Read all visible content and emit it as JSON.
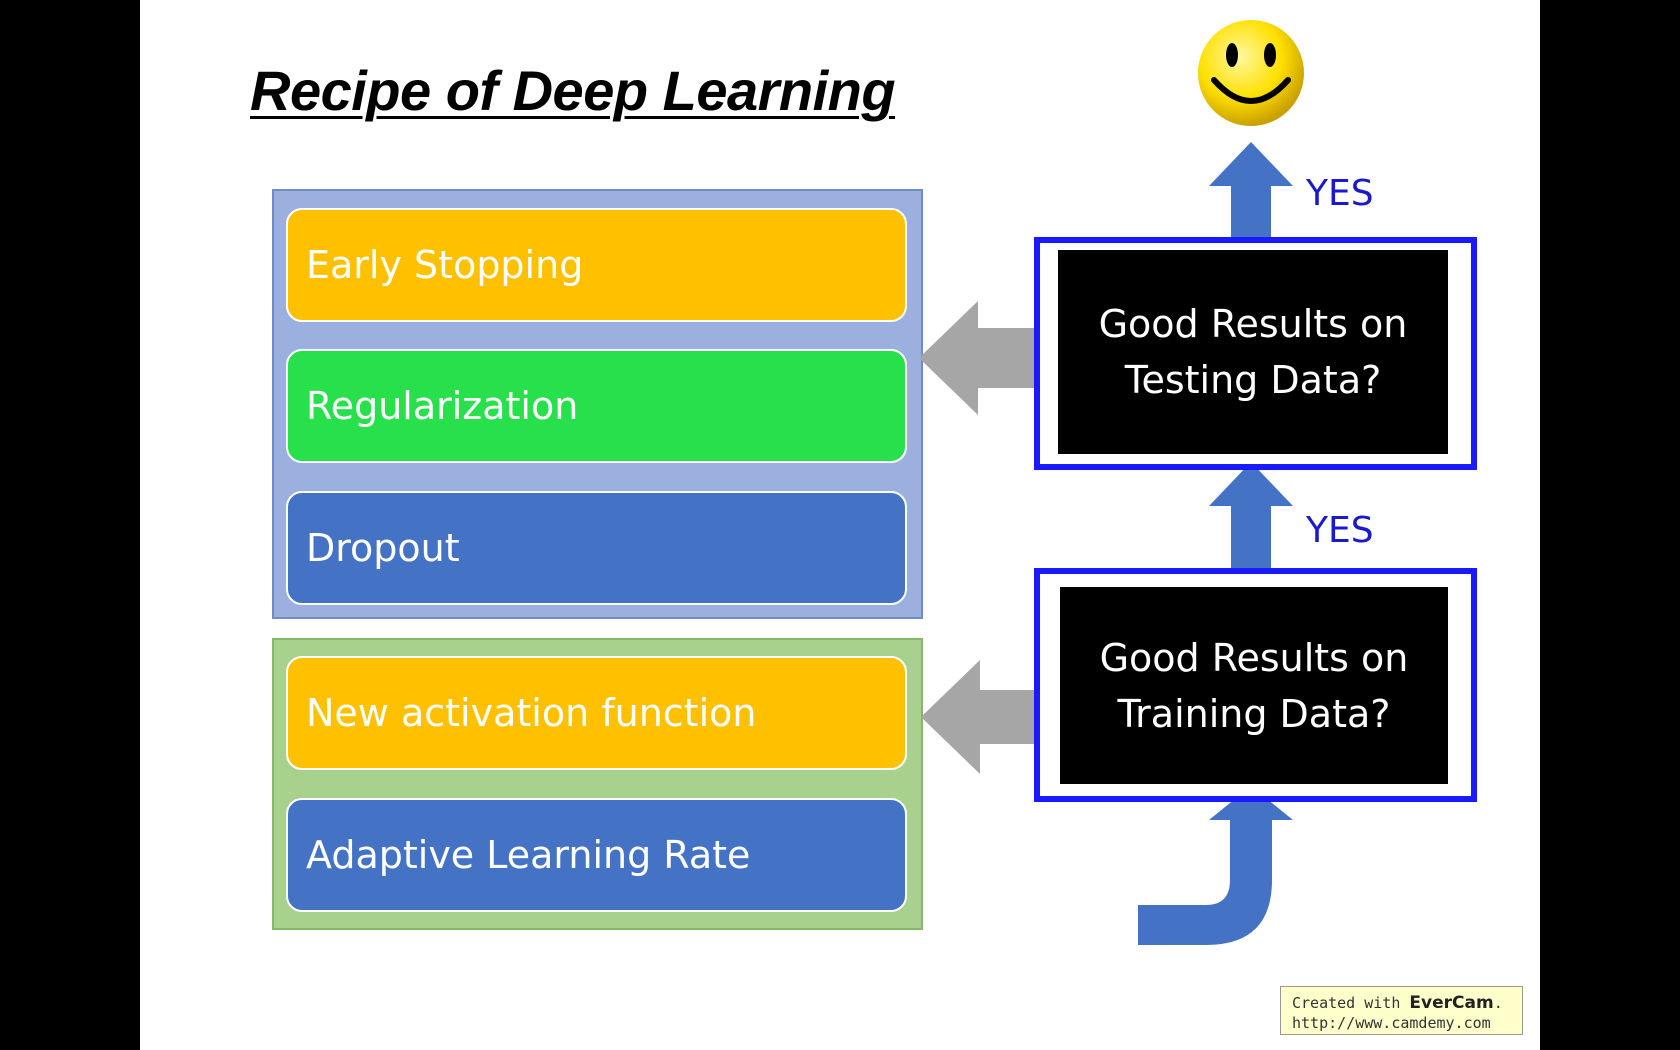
{
  "title": "Recipe of Deep Learning",
  "testing_fixes": [
    "Early Stopping",
    "Regularization",
    "Dropout"
  ],
  "training_fixes": [
    "New activation function",
    "Adaptive Learning Rate"
  ],
  "testing_question": {
    "line1": "Good Results on",
    "line2": "Testing Data?"
  },
  "training_question": {
    "line1": "Good Results on",
    "line2": "Training Data?"
  },
  "yes_top": "YES",
  "yes_middle": "YES",
  "watermark": {
    "prefix": "Created with ",
    "brand": "EverCam",
    "suffix": ".",
    "url": "http://www.camdemy.com"
  },
  "colors": {
    "accent_blue": "#4472c4",
    "orange": "#ffc000",
    "green": "#28e04c",
    "frame_blue": "#1a1aff",
    "gray_arrow": "#a6a6a6"
  }
}
